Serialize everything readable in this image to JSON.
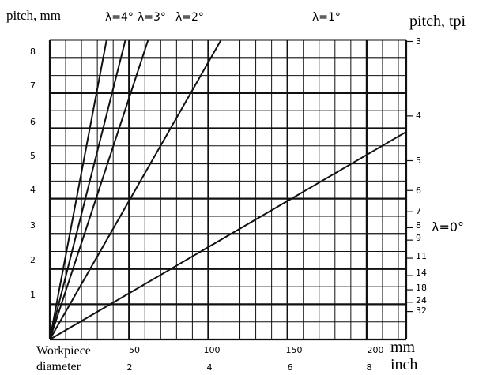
{
  "chart_data": {
    "type": "line",
    "x_mm": {
      "ticks": [
        50,
        100,
        150,
        200
      ],
      "range": [
        0,
        225
      ],
      "unit_label": "mm"
    },
    "x_inch": {
      "ticks": [
        2,
        4,
        6,
        8
      ],
      "unit_label": "inch"
    },
    "x_caption": [
      "Workpiece",
      "diameter"
    ],
    "y_left": {
      "label": "pitch, mm",
      "ticks": [
        1,
        2,
        3,
        4,
        5,
        6,
        7,
        8
      ],
      "range": [
        0,
        8.5
      ]
    },
    "y_right": {
      "label": "pitch, tpi",
      "ticks": [
        3,
        4,
        5,
        6,
        7,
        8,
        9,
        11,
        14,
        18,
        24,
        32
      ]
    },
    "grid": true,
    "series": [
      {
        "name": "λ=4°",
        "x": [
          0,
          35.8
        ],
        "y": [
          0,
          8.5
        ]
      },
      {
        "name": "λ=3°",
        "x": [
          0,
          47.7
        ],
        "y": [
          0,
          8.5
        ]
      },
      {
        "name": "λ=2°",
        "x": [
          0,
          62
        ],
        "y": [
          0,
          8.5
        ]
      },
      {
        "name": "λ=1°",
        "x": [
          0,
          108
        ],
        "y": [
          0,
          8.5
        ]
      },
      {
        "name": "λ=0°",
        "x": [
          0,
          225
        ],
        "y": [
          0,
          5.9
        ]
      }
    ]
  }
}
